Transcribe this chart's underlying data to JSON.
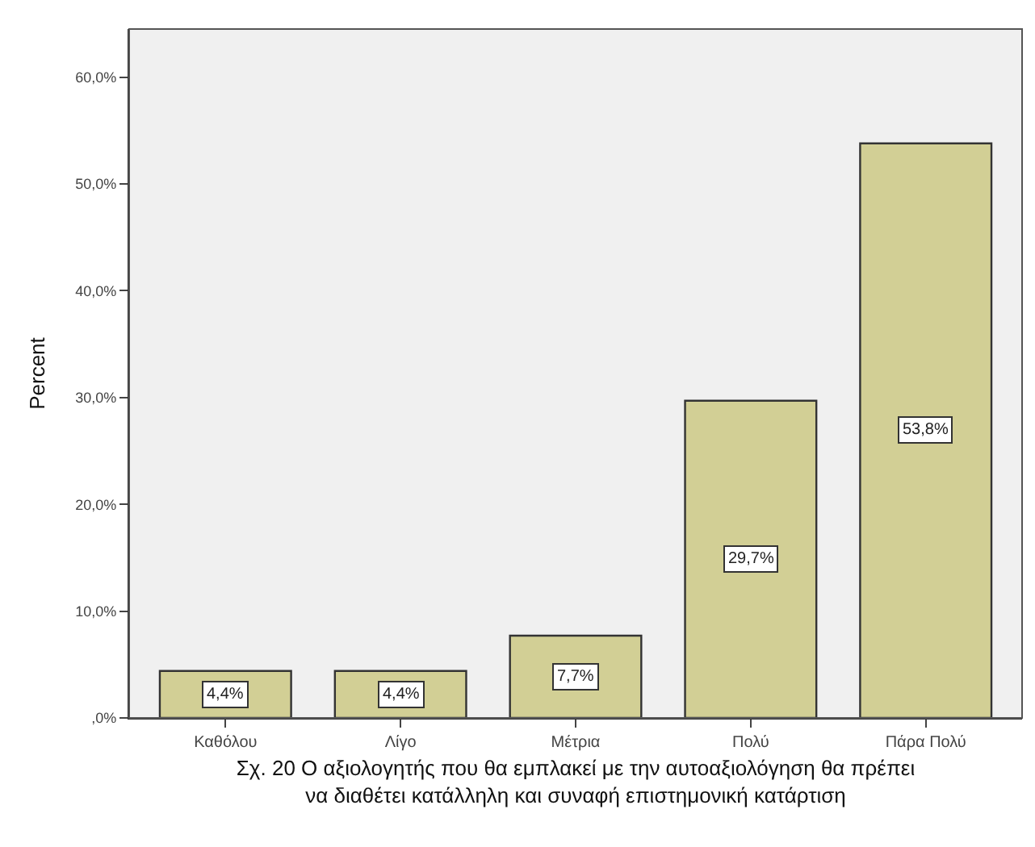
{
  "chart_data": {
    "type": "bar",
    "xlabel": "Σχ. 20 Ο αξιολογητής που θα εμπλακεί με την αυτοαξιολόγηση θα πρέπει\nνα διαθέτει κατάλληλη και συναφή επιστημονική κατάρτιση",
    "ylabel": "Percent",
    "categories": [
      "Καθόλου",
      "Λίγο",
      "Μέτρια",
      "Πολύ",
      "Πάρα Πολύ"
    ],
    "values": [
      4.4,
      4.4,
      7.7,
      29.7,
      53.8
    ],
    "value_labels": [
      "4,4%",
      "4,4%",
      "7,7%",
      "29,7%",
      "53,8%"
    ],
    "color": "#d2cf95",
    "ylim": [
      0,
      64.5
    ],
    "yticks": [
      {
        "value": 0,
        "label": ",0%"
      },
      {
        "value": 10,
        "label": "10,0%"
      },
      {
        "value": 20,
        "label": "20,0%"
      },
      {
        "value": 30,
        "label": "30,0%"
      },
      {
        "value": 40,
        "label": "40,0%"
      },
      {
        "value": 50,
        "label": "50,0%"
      },
      {
        "value": 60,
        "label": "60,0%"
      }
    ],
    "grid": false,
    "legend": false
  }
}
